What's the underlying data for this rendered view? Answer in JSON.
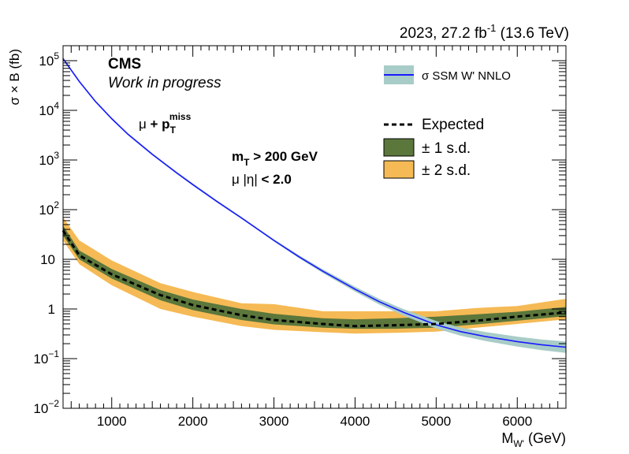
{
  "header": {
    "lumi_prefix": "2023, 27.2 fb",
    "lumi_exp": "-1",
    "lumi_suffix": " (13.6 TeV)"
  },
  "labels": {
    "cms": "CMS",
    "work_in_progress": "Work in progress",
    "channel_mu": "μ",
    "channel_plus": " + p",
    "channel_sub": "T",
    "channel_sup": "miss",
    "cut_mt_base": "m",
    "cut_mt_sub": "T",
    "cut_mt_rest": " > 200 GeV",
    "cut_eta_mu": "μ |η|",
    "cut_eta_rest": " < 2.0"
  },
  "chart_data": {
    "type": "line",
    "xlabel_base": "M",
    "xlabel_sub": "W'",
    "xlabel_unit": " (GeV)",
    "ylabel": "σ × B  (fb)",
    "x_range": [
      400,
      6600
    ],
    "y_range": [
      0.01,
      200000
    ],
    "y_scale": "log",
    "x_ticks": [
      1000,
      2000,
      3000,
      4000,
      5000,
      6000
    ],
    "x_tick_labels": [
      "1000",
      "2000",
      "3000",
      "4000",
      "5000",
      "6000"
    ],
    "y_ticks": [
      {
        "value": 100000,
        "base": "10",
        "exp": "5"
      },
      {
        "value": 10000,
        "base": "10",
        "exp": "4"
      },
      {
        "value": 1000,
        "base": "10",
        "exp": "3"
      },
      {
        "value": 100,
        "base": "10",
        "exp": "2"
      },
      {
        "value": 10,
        "base": "10",
        "exp": ""
      },
      {
        "value": 1,
        "base": "1",
        "exp": ""
      },
      {
        "value": 0.1,
        "base": "10",
        "exp": "−1"
      },
      {
        "value": 0.01,
        "base": "10",
        "exp": "−2"
      }
    ],
    "legend": {
      "theory": "σ SSM W' NNLO",
      "expected": "Expected",
      "band1": "± 1 s.d.",
      "band2": "± 2 s.d."
    },
    "colors": {
      "theory_line": "#1a1aff",
      "theory_band": "#a8ccc8",
      "band1": "#5b773c",
      "band2": "#f5ba55",
      "expected": "#000000"
    },
    "series": [
      {
        "name": "σ SSM W' NNLO",
        "x": [
          400,
          600,
          800,
          1000,
          1200,
          1500,
          1800,
          2000,
          2300,
          2600,
          3000,
          3300,
          3600,
          4000,
          4300,
          4600,
          5000,
          5300,
          5600,
          6000,
          6300,
          6600
        ],
        "y": [
          110000,
          38000,
          15000,
          6800,
          3300,
          1300,
          550,
          320,
          145,
          68,
          24,
          11.5,
          5.8,
          2.5,
          1.4,
          0.85,
          0.48,
          0.35,
          0.28,
          0.22,
          0.19,
          0.17
        ]
      },
      {
        "name": "Expected",
        "x": [
          400,
          600,
          1000,
          1600,
          2000,
          2600,
          3000,
          3600,
          4000,
          4500,
          5000,
          5500,
          6000,
          6600
        ],
        "y": [
          38,
          12,
          5,
          1.9,
          1.2,
          0.75,
          0.6,
          0.5,
          0.45,
          0.47,
          0.5,
          0.58,
          0.7,
          0.85
        ]
      }
    ],
    "band_1sd": {
      "x": [
        400,
        600,
        1000,
        1600,
        2000,
        2600,
        3000,
        3600,
        4000,
        4500,
        5000,
        5500,
        6000,
        6600
      ],
      "lo": [
        30,
        10,
        4.1,
        1.5,
        0.95,
        0.6,
        0.49,
        0.42,
        0.4,
        0.4,
        0.42,
        0.49,
        0.58,
        0.72
      ],
      "hi": [
        48,
        15,
        6.4,
        2.4,
        1.55,
        1.0,
        0.8,
        0.65,
        0.62,
        0.65,
        0.7,
        0.78,
        0.88,
        1.1
      ]
    },
    "band_2sd": {
      "x": [
        400,
        600,
        1000,
        1600,
        2000,
        2600,
        3000,
        3600,
        4000,
        4500,
        5000,
        5500,
        6000,
        6600
      ],
      "lo": [
        24,
        8,
        3.0,
        1.0,
        0.7,
        0.45,
        0.38,
        0.34,
        0.32,
        0.33,
        0.35,
        0.42,
        0.5,
        0.62
      ],
      "hi": [
        70,
        24,
        9.5,
        3.3,
        2.2,
        1.3,
        1.25,
        0.9,
        0.9,
        0.9,
        0.9,
        1.05,
        1.15,
        1.6
      ]
    }
  }
}
